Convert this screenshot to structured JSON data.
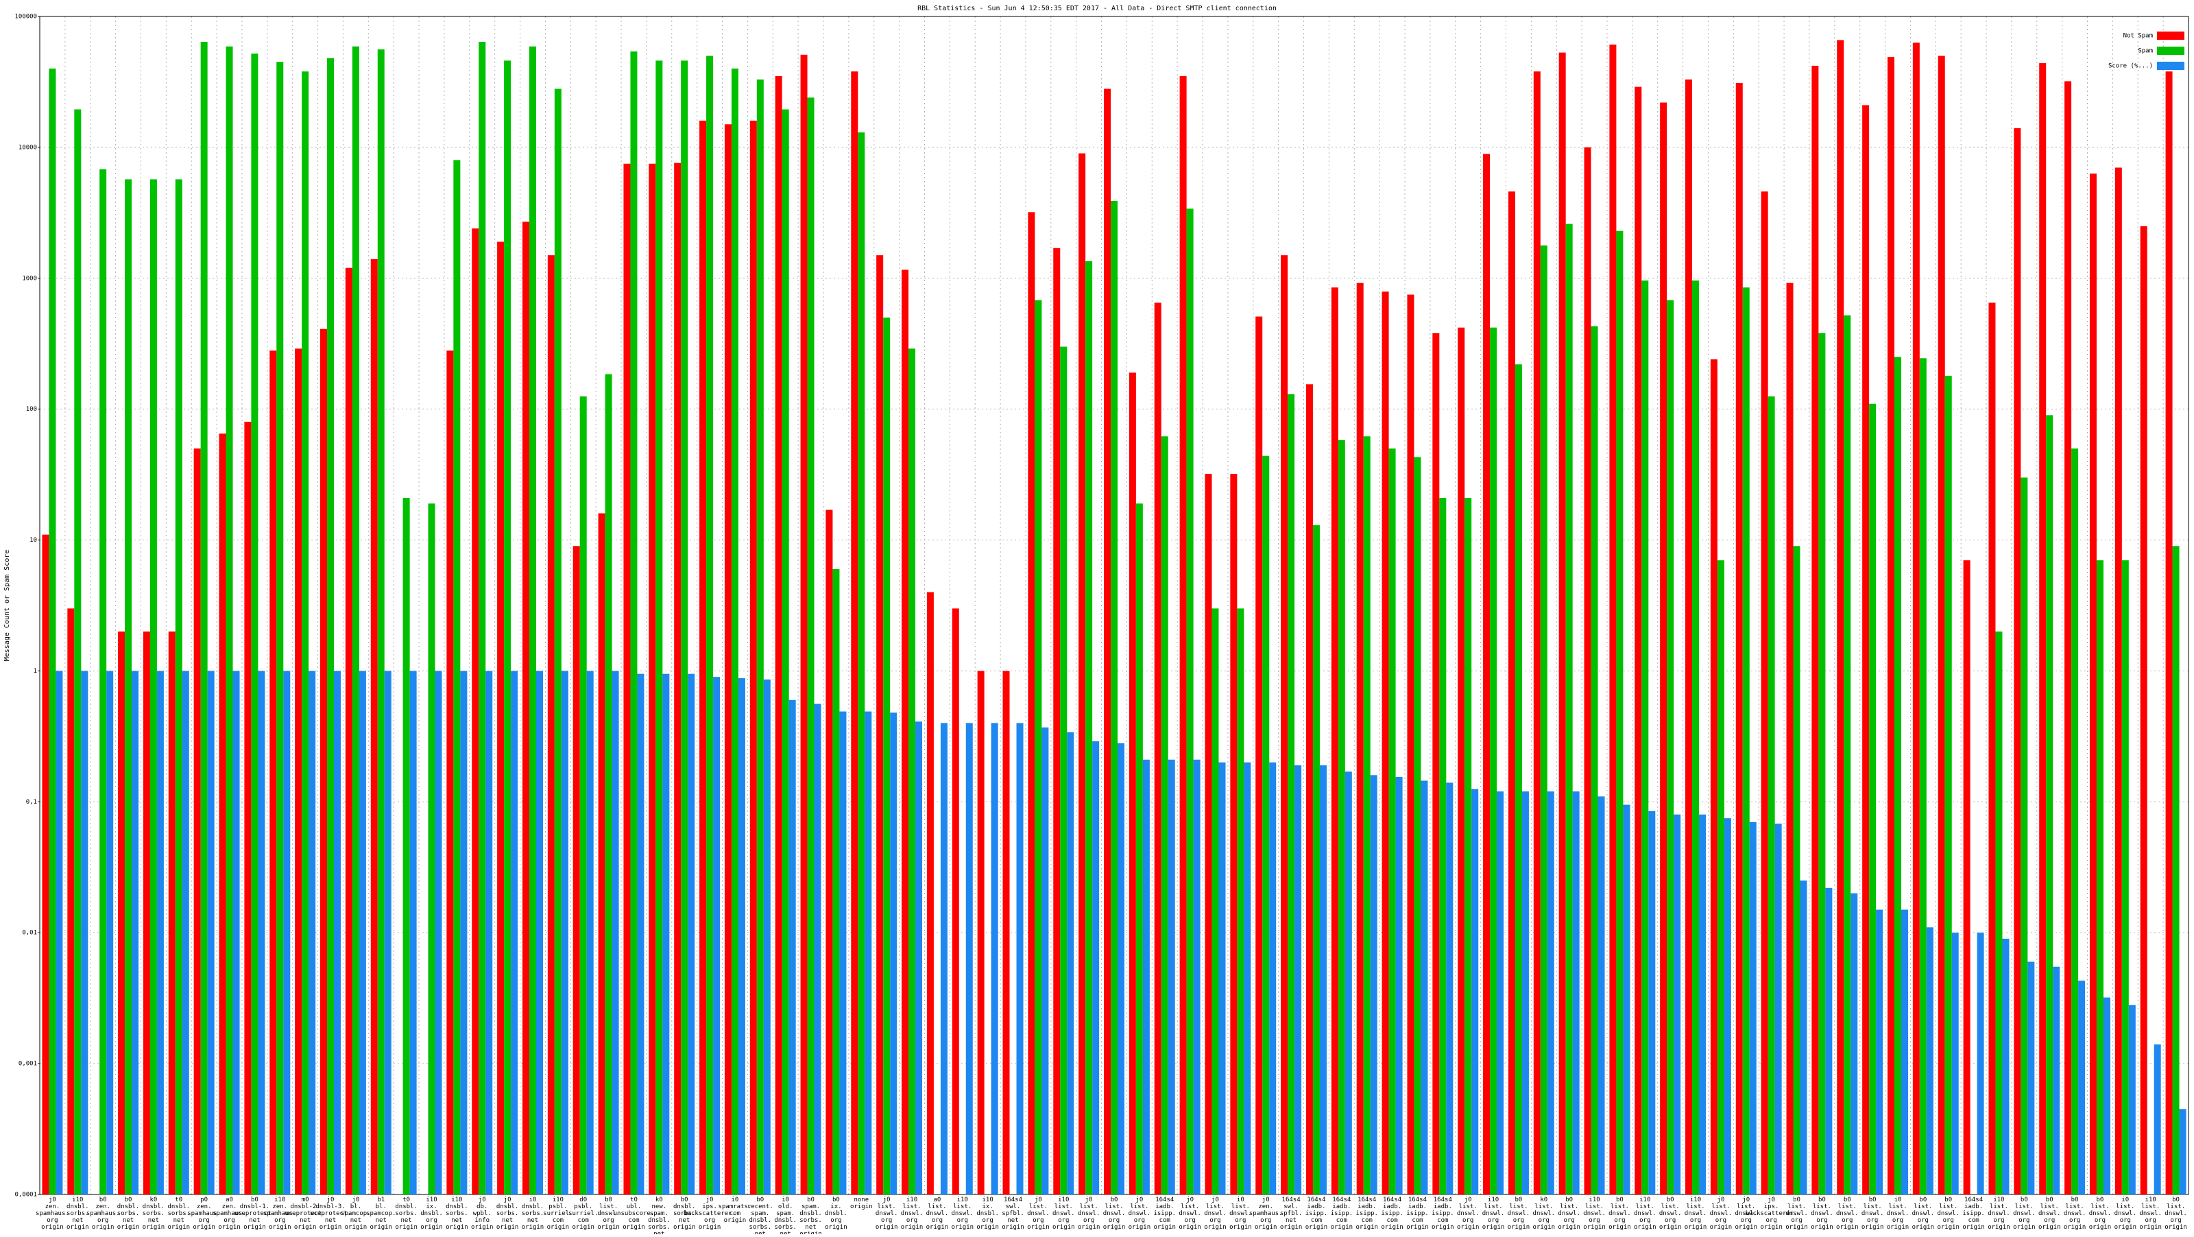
{
  "chart_data": {
    "type": "bar",
    "title": "RBL Statistics - Sun Jun  4 12:50:35 EDT 2017 - All Data - Direct SMTP client connection",
    "ylabel": "Message Count or Spam Score",
    "log_scale": true,
    "grid": true,
    "legend": "upper right",
    "ylim": [
      0.0001,
      100000
    ],
    "yticks": [
      {
        "value": 0.0001,
        "label": "0,0001"
      },
      {
        "value": 0.001,
        "label": "0,001"
      },
      {
        "value": 0.01,
        "label": "0,01"
      },
      {
        "value": 0.1,
        "label": "0,1"
      },
      1,
      10,
      100,
      1000,
      10000,
      100000
    ],
    "categories": [
      "j0 zen. spamhaus. org origin",
      "i10 dnsbl. sorbs. net origin",
      "b0 zen. spamhaus. org origin",
      "b0 dnsbl. sorbs. net origin",
      "k0 dnsbl. sorbs. net origin",
      "t0 dnsbl. sorbs. net origin",
      "p0 zen. spamhaus. org origin",
      "a0 zen. spamhaus. org origin",
      "b0 dnsbl-1. uceprotect. net origin",
      "i10 zen. spamhaus. org origin",
      "m0 dnsbl-2. uceprotect. net origin",
      "j0 dnsbl-3. uceprotect. net origin",
      "j0 bl. spamcop. net origin",
      "b1 bl. spamcop. net origin",
      "t0 dnsbl. sorbs. net origin",
      "i10 ix. dnsbl. org origin",
      "i10 dnsbl. sorbs. net origin",
      "j0 db. wpbl. info origin",
      "j0 dnsbl. sorbs. net origin",
      "i0 dnsbl. sorbs. net origin",
      "i10 psbl. surriel. com origin",
      "d0 psbl. surriel. com origin",
      "b0 list. dnswl. org origin",
      "t0 ubl. unsubscore. com origin",
      "k0 new. spam. dnsbl. sorbs. net origin",
      "b0 dnsbl. sorbs. net origin",
      "j0 ips. backscatterer. org origin",
      "i0 spamrats. com origin",
      "b0 recent. spam. dnsbl. sorbs. net origin",
      "i0 old. spam. dnsbl. sorbs. net origin",
      "b0 spam. dnsbl. sorbs. net origin",
      "b0 ix. dnsbl. org origin",
      "none origin",
      "j0 list. dnswl. org origin",
      "i10 list. dnswl. org origin",
      "a0 list. dnswl. org origin",
      "i10 list. dnswl. org origin",
      "i10 ix. dnsbl. org origin",
      "164s4 swl. spfbl. net origin",
      "j0 list. dnswl. org origin",
      "i10 list. dnswl. org origin",
      "j0 list. dnswl. org origin",
      "b0 list. dnswl. org origin",
      "j0 list. dnswl. org origin",
      "164s4 iadb. isipp. com origin",
      "j0 list. dnswl. org origin",
      "j0 list. dnswl. org origin",
      "i0 list. dnswl. org origin",
      "j0 zen. spamhaus. org origin",
      "164s4 swl. spfbl. net origin",
      "164s4 iadb. isipp. com origin",
      "164s4 iadb. isipp. com origin",
      "164s4 iadb. isipp. com origin",
      "164s4 iadb. isipp. com origin",
      "164s4 iadb. isipp. com origin",
      "164s4 iadb. isipp. com origin",
      "j0 list. dnswl. org origin",
      "i10 list. dnswl. org origin",
      "b0 list. dnswl. org origin",
      "k0 list. dnswl. org origin",
      "b0 list. dnswl. org origin",
      "i10 list. dnswl. org origin",
      "b0 list. dnswl. org origin",
      "i10 list. dnswl. org origin",
      "b0 list. dnswl. org origin",
      "i10 list. dnswl. org origin",
      "j0 list. dnswl. org origin",
      "j0 list. dnswl. org origin",
      "j0 ips. backscatterer. org origin",
      "b0 list. dnswl. org origin",
      "b0 list. dnswl. org origin",
      "b0 list. dnswl. org origin",
      "b0 list. dnswl. org origin",
      "i0 list. dnswl. org origin",
      "b0 list. dnswl. org origin",
      "b0 list. dnswl. org origin",
      "164s4 iadb. isipp. com origin",
      "i10 list. dnswl. org origin",
      "b0 list. dnswl. org origin",
      "b0 list. dnswl. org origin",
      "b0 list. dnswl. org origin",
      "b0 list. dnswl. org origin",
      "i0 list. dnswl. org origin",
      "i10 list. dnswl. org origin",
      "b0 list. dnswl. org origin"
    ],
    "series": [
      {
        "name": "Not Spam",
        "color": "#ff0000",
        "values": [
          11,
          3,
          null,
          2,
          2,
          2,
          50,
          65,
          80,
          280,
          290,
          410,
          1200,
          1400,
          null,
          null,
          280,
          2400,
          1900,
          2700,
          1500,
          9,
          16,
          7500,
          7500,
          7600,
          16000,
          15000,
          16000,
          35000,
          51000,
          17,
          38000,
          1500,
          1160,
          4,
          3,
          1,
          1,
          3200,
          1700,
          9000,
          28000,
          190,
          650,
          35000,
          32,
          32,
          510,
          1500,
          155,
          850,
          920,
          790,
          750,
          380,
          420,
          8900,
          4600,
          38000,
          53000,
          10000,
          61000,
          29000,
          22000,
          33000,
          240,
          31000,
          4600,
          920,
          42000,
          66000,
          21000,
          49000,
          63000,
          50000,
          7,
          650,
          14000,
          44000,
          32000,
          6300,
          7000,
          2500,
          38000
        ]
      },
      {
        "name": "Spam",
        "color": "#00c000",
        "values": [
          40000,
          19500,
          6800,
          5700,
          5700,
          5700,
          64000,
          59000,
          52000,
          45000,
          38000,
          48000,
          59000,
          56000,
          21,
          19,
          8000,
          64000,
          46000,
          59000,
          28000,
          125,
          185,
          54000,
          46000,
          46000,
          50000,
          40000,
          33000,
          19500,
          24000,
          6,
          13000,
          500,
          290,
          null,
          null,
          null,
          null,
          680,
          300,
          1350,
          3900,
          19,
          62,
          3400,
          3,
          3,
          44,
          130,
          13,
          58,
          62,
          50,
          43,
          21,
          21,
          420,
          220,
          1780,
          2600,
          430,
          2300,
          960,
          680,
          960,
          7,
          850,
          125,
          9,
          380,
          520,
          110,
          250,
          245,
          180,
          null,
          2,
          30,
          90,
          50,
          7,
          7,
          null,
          9
        ]
      },
      {
        "name": "Score (%...)",
        "color": "#1e88f0",
        "values": [
          1,
          1,
          1,
          1,
          1,
          1,
          1,
          1,
          1,
          1,
          1,
          1,
          1,
          1,
          1,
          1,
          1,
          1,
          1,
          1,
          1,
          1,
          1,
          0.95,
          0.95,
          0.95,
          0.9,
          0.88,
          0.86,
          0.6,
          0.56,
          0.49,
          0.49,
          0.48,
          0.41,
          0.4,
          0.4,
          0.4,
          0.4,
          0.37,
          0.34,
          0.29,
          0.28,
          0.21,
          0.21,
          0.21,
          0.2,
          0.2,
          0.2,
          0.19,
          0.19,
          0.17,
          0.16,
          0.155,
          0.145,
          0.14,
          0.125,
          0.12,
          0.12,
          0.12,
          0.12,
          0.11,
          0.095,
          0.085,
          0.08,
          0.08,
          0.075,
          0.07,
          0.068,
          0.025,
          0.022,
          0.02,
          0.015,
          0.015,
          0.011,
          0.01,
          0.01,
          0.009,
          0.006,
          0.0055,
          0.0043,
          0.0032,
          0.0028,
          0.0014,
          0.00045
        ]
      }
    ]
  }
}
